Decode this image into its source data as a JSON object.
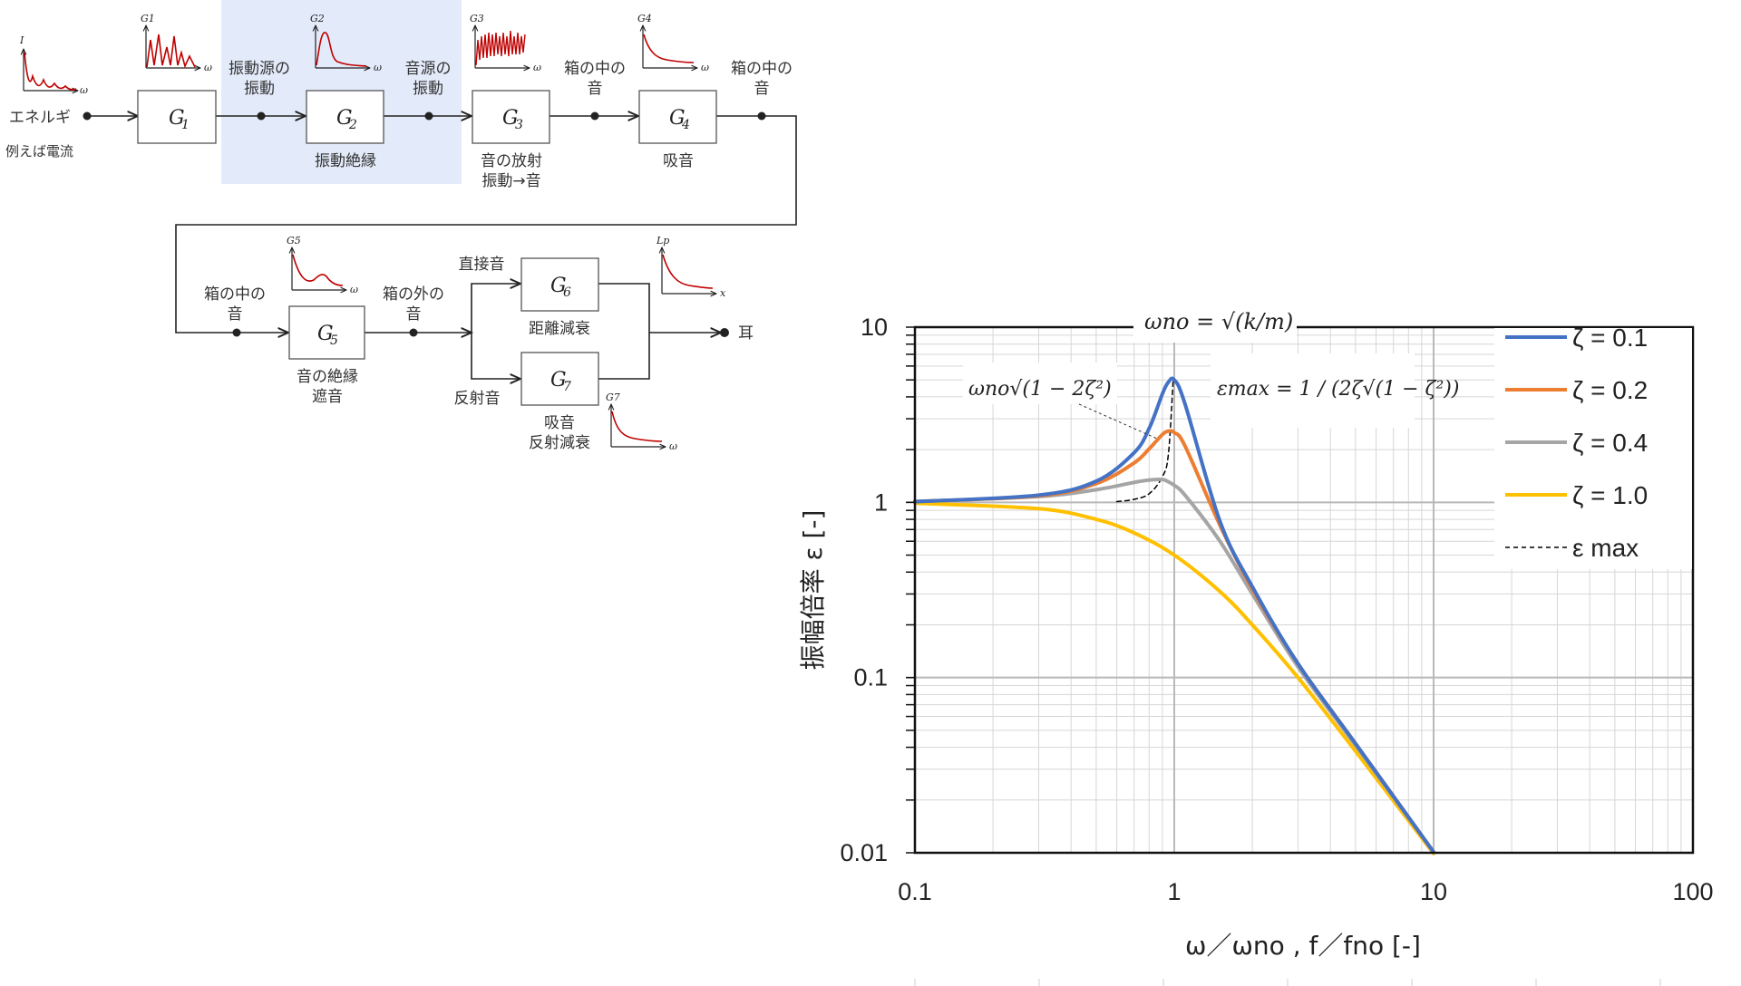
{
  "diagram": {
    "source": {
      "label": "エネルギ",
      "sublabel": "例えば電流",
      "graph_axis_y": "I",
      "graph_axis_x": "ω"
    },
    "blocks": [
      {
        "id": "G1",
        "symbol": "G",
        "sub": "1",
        "caption1": "",
        "caption2": "",
        "graph_y": "G1",
        "graph_x": "ω"
      },
      {
        "id": "G2",
        "symbol": "G",
        "sub": "2",
        "caption1": "振動絶縁",
        "caption2": "",
        "graph_y": "G2",
        "graph_x": "ω"
      },
      {
        "id": "G3",
        "symbol": "G",
        "sub": "3",
        "caption1": "音の放射",
        "caption2": "振動→音",
        "graph_y": "G3",
        "graph_x": "ω"
      },
      {
        "id": "G4",
        "symbol": "G",
        "sub": "4",
        "caption1": "吸音",
        "caption2": "",
        "graph_y": "G4",
        "graph_x": "ω"
      },
      {
        "id": "G5",
        "symbol": "G",
        "sub": "5",
        "caption1": "音の絶縁",
        "caption2": "遮音",
        "graph_y": "G5",
        "graph_x": "ω"
      },
      {
        "id": "G6",
        "symbol": "G",
        "sub": "6",
        "caption1": "距離減衰",
        "caption2": "",
        "graph_y": "",
        "graph_x": ""
      },
      {
        "id": "G7",
        "symbol": "G",
        "sub": "7",
        "caption1": "吸音",
        "caption2": "反射減衰",
        "graph_y": "G7",
        "graph_x": "ω"
      }
    ],
    "signals": {
      "s1a": "振動源の",
      "s1b": "振動",
      "s2a": "音源の",
      "s2b": "振動",
      "s3a": "箱の中の",
      "s3b": "音",
      "s4a": "箱の中の",
      "s4b": "音",
      "s5a": "箱の中の",
      "s5b": "音",
      "s6a": "箱の外の",
      "s6b": "音",
      "direct": "直接音",
      "reflected": "反射音",
      "output": "耳",
      "output_graph_y": "Lp",
      "output_graph_x": "x"
    },
    "colors": {
      "highlight": "#e3ebfa",
      "curve": "#c00000",
      "line": "#222222"
    }
  },
  "chart_data": {
    "type": "line",
    "title": "",
    "xlabel": "ω／ωno , f／fno [-]",
    "ylabel": "振幅倍率 ε [-]",
    "xscale": "log",
    "yscale": "log",
    "xlim": [
      0.1,
      100
    ],
    "ylim": [
      0.01,
      10
    ],
    "x_ticks": [
      "0.1",
      "1",
      "10",
      "100"
    ],
    "y_ticks": [
      "0.01",
      "0.1",
      "1",
      "10"
    ],
    "grid": true,
    "legend_position": "top-right",
    "annotations": {
      "omega_no": "ωno = √(k/m)",
      "peak_freq": "ωno√(1 − 2ζ²)",
      "eps_max": "εmax = 1 / (2ζ√(1 − ζ²))"
    },
    "series": [
      {
        "name": "ζ = 0.1",
        "color": "#4472c4",
        "zeta": 0.1,
        "x": [
          0.1,
          0.3,
          0.5,
          0.7,
          0.8,
          0.9,
          0.95,
          1.0,
          1.1,
          1.5,
          2,
          3,
          5,
          10
        ],
        "y": [
          1.01,
          1.1,
          1.32,
          1.92,
          2.64,
          4.16,
          4.86,
          5.0,
          3.65,
          0.78,
          0.33,
          0.12,
          0.042,
          0.0101
        ]
      },
      {
        "name": "ζ = 0.2",
        "color": "#ed7d31",
        "zeta": 0.2,
        "x": [
          0.1,
          0.3,
          0.5,
          0.7,
          0.8,
          0.9,
          0.95,
          1.0,
          1.1,
          1.5,
          2,
          3,
          5,
          10
        ],
        "y": [
          1.01,
          1.09,
          1.28,
          1.68,
          2.02,
          2.44,
          2.55,
          2.5,
          2.1,
          0.74,
          0.32,
          0.12,
          0.042,
          0.0101
        ]
      },
      {
        "name": "ζ = 0.4",
        "color": "#a5a5a5",
        "zeta": 0.4,
        "x": [
          0.1,
          0.3,
          0.5,
          0.7,
          0.8,
          0.9,
          0.95,
          1.0,
          1.1,
          1.5,
          2,
          3,
          5,
          10
        ],
        "y": [
          1.01,
          1.08,
          1.18,
          1.3,
          1.34,
          1.35,
          1.31,
          1.25,
          1.1,
          0.6,
          0.3,
          0.115,
          0.041,
          0.0101
        ]
      },
      {
        "name": "ζ = 1.0",
        "color": "#ffc000",
        "zeta": 1.0,
        "x": [
          0.1,
          0.3,
          0.5,
          0.7,
          1.0,
          1.5,
          2,
          3,
          5,
          10
        ],
        "y": [
          0.99,
          0.92,
          0.8,
          0.67,
          0.5,
          0.31,
          0.2,
          0.1,
          0.038,
          0.0099
        ]
      },
      {
        "name": "ε max",
        "color": "#000000",
        "dashed": true,
        "x": [
          0.6,
          0.7,
          0.8,
          0.9,
          0.95,
          0.99
        ],
        "y": [
          1.01,
          1.04,
          1.12,
          1.4,
          1.9,
          5.0
        ]
      }
    ]
  }
}
